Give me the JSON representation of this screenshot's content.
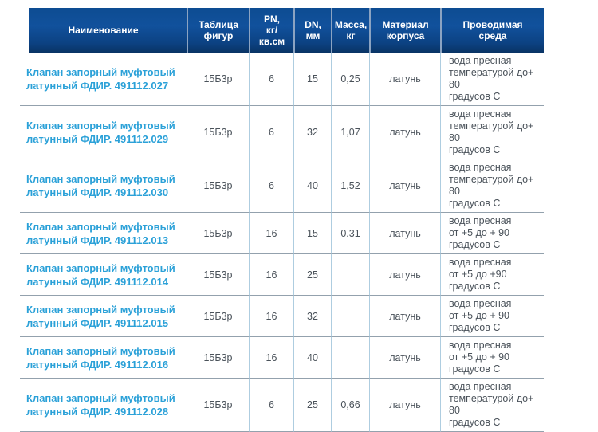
{
  "colors": {
    "header_gradient_top": "#0d4c92",
    "header_gradient_bottom": "#093465",
    "link_blue": "#2ba1d8",
    "body_text": "#4a525a",
    "row_separator": "#93a1ad",
    "column_separator": "#aecde0",
    "header_separator": "#8ba3c2"
  },
  "table": {
    "columns": [
      {
        "label": "Наименование"
      },
      {
        "label": "Таблица\nфигур"
      },
      {
        "label": "PN,\nкг/\nкв.см"
      },
      {
        "label": "DN,\nмм"
      },
      {
        "label": "Масса,\nкг"
      },
      {
        "label": "Материал\nкорпуса"
      },
      {
        "label": "Проводимая\nсреда"
      }
    ],
    "rows": [
      {
        "name": "Клапан запорный муфтовый\nлатунный ФДИР. 491112.027",
        "figure_table": "15Б3р",
        "pn": "6",
        "dn": "15",
        "mass": "0,25",
        "body_material": "латунь",
        "media": "вода пресная\nтемпературой до+ 80\nградусов С"
      },
      {
        "name": "Клапан запорный муфтовый\nлатунный ФДИР. 491112.029",
        "figure_table": "15Б3р",
        "pn": "6",
        "dn": "32",
        "mass": "1,07",
        "body_material": "латунь",
        "media": "вода пресная\nтемпературой до+ 80\nградусов С"
      },
      {
        "name": "Клапан запорный муфтовый\nлатунный ФДИР. 491112.030",
        "figure_table": "15Б3р",
        "pn": "6",
        "dn": "40",
        "mass": "1,52",
        "body_material": "латунь",
        "media": "вода пресная\nтемпературой до+ 80\nградусов С"
      },
      {
        "name": "Клапан запорный муфтовый\nлатунный ФДИР. 491112.013",
        "figure_table": "15Б3р",
        "pn": "16",
        "dn": "15",
        "mass": "0.31",
        "body_material": "латунь",
        "media": "вода пресная\nот +5 до + 90\nградусов С"
      },
      {
        "name": "Клапан запорный муфтовый\nлатунный ФДИР. 491112.014",
        "figure_table": "15Б3р",
        "pn": "16",
        "dn": "25",
        "mass": "",
        "body_material": "латунь",
        "media": "вода пресная\nот +5 до +90\nградусов С"
      },
      {
        "name": "Клапан запорный муфтовый\nлатунный ФДИР. 491112.015",
        "figure_table": "15Б3р",
        "pn": "16",
        "dn": "32",
        "mass": "",
        "body_material": "латунь",
        "media": "вода пресная\nот +5 до + 90\nградусов С"
      },
      {
        "name": "Клапан запорный муфтовый\nлатунный ФДИР. 491112.016",
        "figure_table": "15Б3р",
        "pn": "16",
        "dn": "40",
        "mass": "",
        "body_material": "латунь",
        "media": "вода пресная\nот +5 до + 90\nградусов С"
      },
      {
        "name": "Клапан запорный муфтовый\nлатунный ФДИР. 491112.028",
        "figure_table": "15Б3р",
        "pn": "6",
        "dn": "25",
        "mass": "0,66",
        "body_material": "латунь",
        "media": "вода пресная\nтемпературой до+ 80\nградусов С"
      }
    ]
  }
}
